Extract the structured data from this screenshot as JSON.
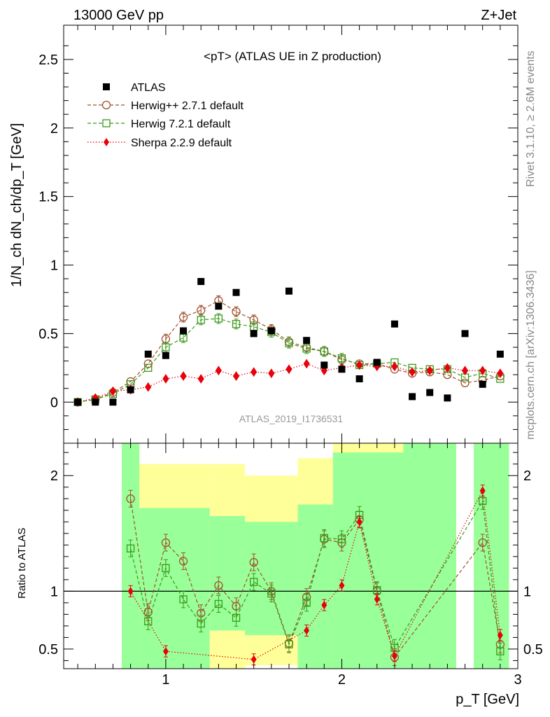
{
  "header": {
    "energy": "13000 GeV pp",
    "process": "Z+Jet"
  },
  "side_text": {
    "rivet": "Rivet 3.1.10, ≥ 2.6M events",
    "mcplots": "mcplots.cern.ch [arXiv:1306.3436]"
  },
  "colors": {
    "atlas": "#000000",
    "herwigpp": "#a0522d",
    "herwig7": "#3a9a1a",
    "sherpa": "#e8000b",
    "band_inner": "#99ff99",
    "band_outer": "#ffff99"
  },
  "chart_data": [
    {
      "type": "scatter",
      "title": "<pT> (ATLAS UE in Z production)",
      "analysis_id": "ATLAS_2019_I1736531",
      "xlabel": "p_T [GeV]",
      "ylabel": "1/N_ch dN_ch/dp_T [GeV]",
      "xlim": [
        0.42,
        3.0
      ],
      "ylim": [
        -0.3,
        2.75
      ],
      "yticks": [
        0,
        0.5,
        1,
        1.5,
        2,
        2.5
      ],
      "yticks_labels": [
        "0",
        "0.5",
        "1",
        "1.5",
        "2",
        "2.5"
      ],
      "x": [
        0.5,
        0.6,
        0.7,
        0.8,
        0.9,
        1.0,
        1.1,
        1.2,
        1.3,
        1.4,
        1.5,
        1.6,
        1.7,
        1.8,
        1.9,
        2.0,
        2.1,
        2.2,
        2.3,
        2.4,
        2.5,
        2.6,
        2.7,
        2.8,
        2.9
      ],
      "legend": [
        "ATLAS",
        "Herwig++ 2.7.1 default",
        "Herwig 7.2.1 default",
        "Sherpa 2.2.9 default"
      ],
      "series": [
        {
          "name": "ATLAS",
          "marker": "square",
          "values": [
            0.0,
            0.0,
            0.0,
            0.09,
            0.35,
            0.34,
            0.52,
            0.88,
            0.7,
            0.8,
            0.5,
            0.52,
            0.81,
            0.45,
            0.27,
            0.24,
            0.17,
            0.29,
            0.57,
            0.04,
            0.07,
            0.03,
            0.5,
            0.13,
            0.35
          ]
        },
        {
          "name": "Herwig++ 2.7.1 default",
          "marker": "circle",
          "values": [
            0.0,
            0.02,
            0.07,
            0.15,
            0.28,
            0.46,
            0.62,
            0.67,
            0.74,
            0.66,
            0.6,
            0.53,
            0.44,
            0.4,
            0.37,
            0.31,
            0.28,
            0.28,
            0.24,
            0.21,
            0.22,
            0.2,
            0.14,
            0.16,
            0.19
          ]
        },
        {
          "name": "Herwig 7.2.1 default",
          "marker": "open-square",
          "values": [
            0.0,
            0.02,
            0.06,
            0.13,
            0.25,
            0.4,
            0.47,
            0.6,
            0.61,
            0.57,
            0.55,
            0.51,
            0.43,
            0.39,
            0.37,
            0.32,
            0.27,
            0.28,
            0.29,
            0.25,
            0.24,
            0.24,
            0.18,
            0.21,
            0.17
          ]
        },
        {
          "name": "Sherpa 2.2.9 default",
          "marker": "diamond",
          "values": [
            0.0,
            0.03,
            0.08,
            0.09,
            0.11,
            0.17,
            0.19,
            0.17,
            0.23,
            0.19,
            0.22,
            0.21,
            0.24,
            0.28,
            0.23,
            0.25,
            0.27,
            0.26,
            0.26,
            0.22,
            0.23,
            0.25,
            0.23,
            0.23,
            0.21
          ]
        }
      ]
    },
    {
      "type": "line",
      "title": "Ratio to ATLAS",
      "xlabel": "p_T [GeV]",
      "ylabel": "Ratio to ATLAS",
      "xlim": [
        0.42,
        3.0
      ],
      "ylim": [
        0.33,
        2.28
      ],
      "yticks": [
        0.5,
        1,
        2
      ],
      "yticks_labels": [
        "0.5",
        "1",
        "2"
      ],
      "xticks": [
        1,
        2,
        3
      ],
      "xticks_labels": [
        "1",
        "2",
        "3"
      ],
      "reference_line": 1,
      "x": [
        0.8,
        0.9,
        1.0,
        1.1,
        1.2,
        1.3,
        1.4,
        1.5,
        1.6,
        1.7,
        1.8,
        1.9,
        2.0,
        2.1,
        2.2,
        2.3,
        2.8,
        2.9
      ],
      "series": [
        {
          "name": "Herwig++ 2.7.1 default",
          "values": [
            1.8,
            0.82,
            1.42,
            1.26,
            0.81,
            1.05,
            0.87,
            1.25,
            1.0,
            0.55,
            0.95,
            1.45,
            1.42,
            1.62,
            1.0,
            0.43,
            1.42,
            0.54
          ]
        },
        {
          "name": "Herwig 7.2.1 default",
          "values": [
            1.37,
            0.74,
            1.2,
            0.93,
            0.72,
            0.89,
            0.77,
            1.08,
            0.98,
            0.54,
            0.9,
            1.46,
            1.45,
            1.66,
            1.01,
            0.51,
            1.78,
            0.48
          ]
        },
        {
          "name": "Sherpa 2.2.9 default",
          "values": [
            1.0,
            null,
            0.48,
            null,
            null,
            null,
            null,
            0.41,
            null,
            null,
            0.66,
            0.88,
            1.05,
            1.6,
            0.93,
            0.44,
            1.87,
            0.62
          ]
        }
      ],
      "bands": [
        {
          "x_from": 0.75,
          "x_to": 0.85,
          "inner_low": 0.33,
          "inner_high": 2.28,
          "outer_low": 0.33,
          "outer_high": 2.28
        },
        {
          "x_from": 0.85,
          "x_to": 1.25,
          "inner_low": 0.33,
          "inner_high": 1.72,
          "outer_low": 0.33,
          "outer_high": 2.1
        },
        {
          "x_from": 1.25,
          "x_to": 1.45,
          "inner_low": 0.66,
          "inner_high": 1.65,
          "outer_low": 0.33,
          "outer_high": 2.1
        },
        {
          "x_from": 1.45,
          "x_to": 1.75,
          "inner_low": 0.62,
          "inner_high": 1.6,
          "outer_low": 0.36,
          "outer_high": 2.0
        },
        {
          "x_from": 1.75,
          "x_to": 1.95,
          "inner_low": 0.33,
          "inner_high": 1.75,
          "outer_low": 0.33,
          "outer_high": 2.15
        },
        {
          "x_from": 1.95,
          "x_to": 2.35,
          "inner_low": 0.33,
          "inner_high": 2.2,
          "outer_low": 0.33,
          "outer_high": 2.28
        },
        {
          "x_from": 2.35,
          "x_to": 2.65,
          "inner_low": 0.33,
          "inner_high": 2.28,
          "outer_low": 0.33,
          "outer_high": 2.28
        },
        {
          "x_from": 2.75,
          "x_to": 2.95,
          "inner_low": 0.33,
          "inner_high": 2.28,
          "outer_low": 0.33,
          "outer_high": 2.28
        }
      ]
    }
  ]
}
